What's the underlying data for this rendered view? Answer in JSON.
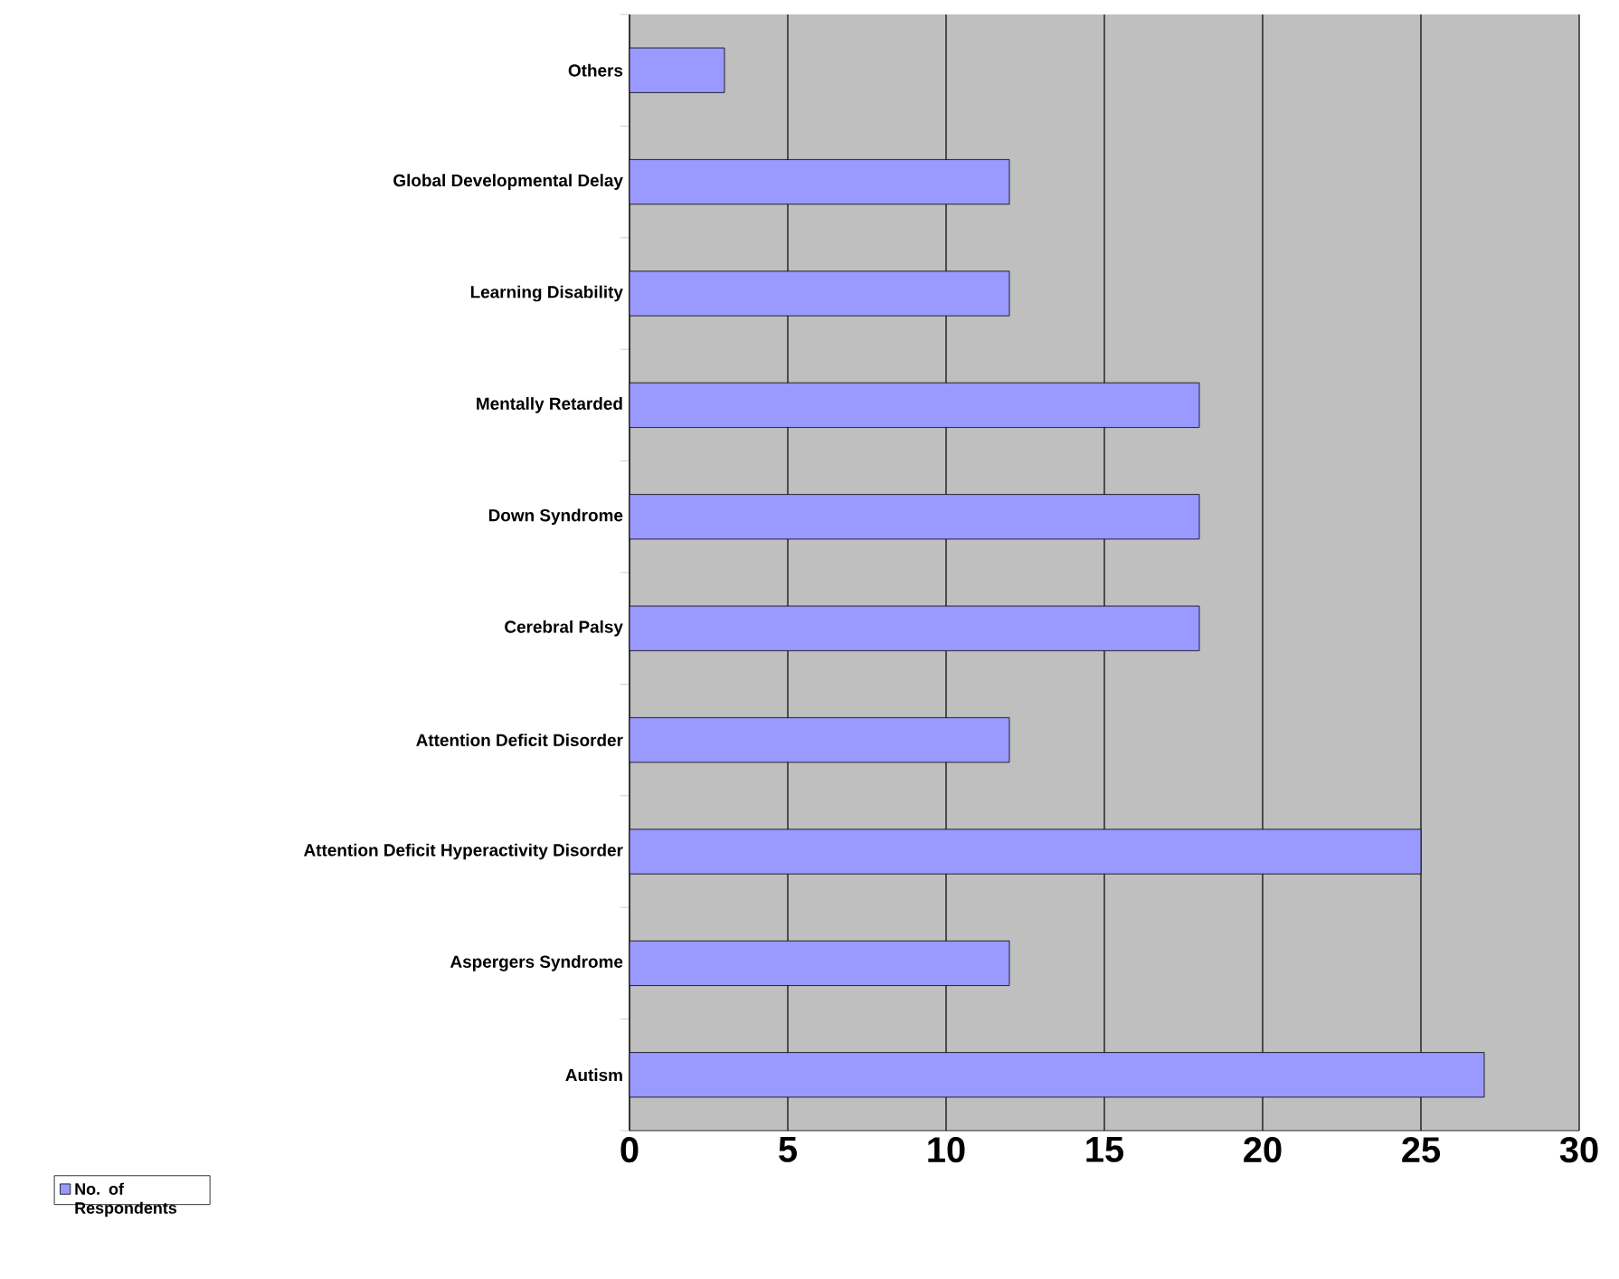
{
  "chart_data": {
    "type": "bar",
    "orientation": "horizontal",
    "categories": [
      "Others",
      "Global Developmental Delay",
      "Learning Disability",
      "Mentally Retarded",
      "Down Syndrome",
      "Cerebral Palsy",
      "Attention Deficit Disorder",
      "Attention Deficit Hyperactivity Disorder",
      "Aspergers Syndrome",
      "Autism"
    ],
    "series": [
      {
        "name": "No. of Respondents",
        "color": "#9999ff",
        "values": [
          3,
          12,
          12,
          18,
          18,
          18,
          12,
          25,
          12,
          27
        ]
      }
    ],
    "xlim": [
      0,
      30
    ],
    "xticks": [
      0,
      5,
      10,
      15,
      20,
      25,
      30
    ],
    "grid": "x",
    "legend": "bottom left"
  }
}
